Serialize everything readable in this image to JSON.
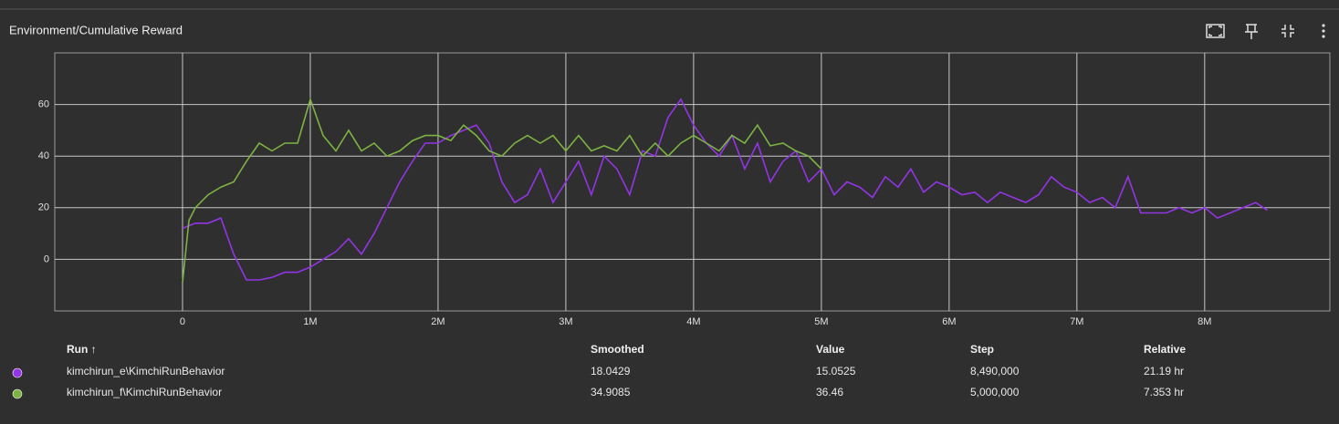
{
  "title": "Environment/Cumulative Reward",
  "chart_data": {
    "type": "line",
    "xlim": [
      -1000000,
      8980000
    ],
    "ylim": [
      -20,
      80
    ],
    "xticks": [
      {
        "value": 0,
        "label": "0"
      },
      {
        "value": 1000000,
        "label": "1M"
      },
      {
        "value": 2000000,
        "label": "2M"
      },
      {
        "value": 3000000,
        "label": "3M"
      },
      {
        "value": 4000000,
        "label": "4M"
      },
      {
        "value": 5000000,
        "label": "5M"
      },
      {
        "value": 6000000,
        "label": "6M"
      },
      {
        "value": 7000000,
        "label": "7M"
      },
      {
        "value": 8000000,
        "label": "8M"
      }
    ],
    "yticks": [
      0,
      20,
      40,
      60
    ],
    "grid": true,
    "series": [
      {
        "name": "kimchirun_e\\KimchiRunBehavior",
        "color": "#9334e6",
        "x": [
          0,
          100000,
          200000,
          300000,
          400000,
          500000,
          600000,
          700000,
          800000,
          900000,
          1000000,
          1100000,
          1200000,
          1300000,
          1400000,
          1500000,
          1600000,
          1700000,
          1800000,
          1900000,
          2000000,
          2100000,
          2200000,
          2300000,
          2400000,
          2500000,
          2600000,
          2700000,
          2800000,
          2900000,
          3000000,
          3100000,
          3200000,
          3300000,
          3400000,
          3500000,
          3600000,
          3700000,
          3800000,
          3900000,
          4000000,
          4100000,
          4200000,
          4300000,
          4400000,
          4500000,
          4600000,
          4700000,
          4800000,
          4900000,
          5000000,
          5100000,
          5200000,
          5300000,
          5400000,
          5500000,
          5600000,
          5700000,
          5800000,
          5900000,
          6000000,
          6100000,
          6200000,
          6300000,
          6400000,
          6500000,
          6600000,
          6700000,
          6800000,
          6900000,
          7000000,
          7100000,
          7200000,
          7300000,
          7400000,
          7500000,
          7600000,
          7700000,
          7800000,
          7900000,
          8000000,
          8100000,
          8200000,
          8300000,
          8400000,
          8490000
        ],
        "values": [
          12,
          14,
          14,
          16,
          2,
          -8,
          -8,
          -7,
          -5,
          -5,
          -3,
          0,
          3,
          8,
          2,
          10,
          20,
          30,
          38,
          45,
          45,
          48,
          50,
          52,
          45,
          30,
          22,
          25,
          35,
          22,
          30,
          38,
          25,
          40,
          35,
          25,
          42,
          40,
          55,
          62,
          52,
          45,
          40,
          48,
          35,
          45,
          30,
          38,
          42,
          30,
          35,
          25,
          30,
          28,
          24,
          32,
          28,
          35,
          26,
          30,
          28,
          25,
          26,
          22,
          26,
          24,
          22,
          25,
          32,
          28,
          26,
          22,
          24,
          20,
          32,
          18,
          18,
          18,
          20,
          18,
          20,
          16,
          18,
          20,
          22,
          19
        ]
      },
      {
        "name": "kimchirun_f\\KimchiRunBehavior",
        "color": "#7cb342",
        "x": [
          0,
          50000,
          100000,
          200000,
          300000,
          400000,
          500000,
          600000,
          700000,
          800000,
          900000,
          1000000,
          1100000,
          1200000,
          1300000,
          1400000,
          1500000,
          1600000,
          1700000,
          1800000,
          1900000,
          2000000,
          2100000,
          2200000,
          2300000,
          2400000,
          2500000,
          2600000,
          2700000,
          2800000,
          2900000,
          3000000,
          3100000,
          3200000,
          3300000,
          3400000,
          3500000,
          3600000,
          3700000,
          3800000,
          3900000,
          4000000,
          4100000,
          4200000,
          4300000,
          4400000,
          4500000,
          4600000,
          4700000,
          4800000,
          4900000,
          5000000
        ],
        "values": [
          -9,
          15,
          20,
          25,
          28,
          30,
          38,
          45,
          42,
          45,
          45,
          62,
          48,
          42,
          50,
          42,
          45,
          40,
          42,
          46,
          48,
          48,
          46,
          52,
          48,
          42,
          40,
          45,
          48,
          45,
          48,
          42,
          48,
          42,
          44,
          42,
          48,
          40,
          45,
          40,
          45,
          48,
          45,
          42,
          48,
          45,
          52,
          44,
          45,
          42,
          40,
          35
        ]
      }
    ]
  },
  "table": {
    "headers": [
      "Run ↑",
      "Smoothed",
      "Value",
      "Step",
      "Relative"
    ],
    "rows": [
      [
        "kimchirun_e\\KimchiRunBehavior",
        "18.0429",
        "15.0525",
        "8,490,000",
        "21.19 hr"
      ],
      [
        "kimchirun_f\\KimchiRunBehavior",
        "34.9085",
        "36.46",
        "5,000,000",
        "7.353 hr"
      ]
    ]
  }
}
